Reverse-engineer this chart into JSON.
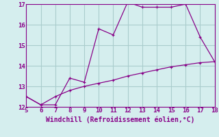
{
  "line1_x": [
    5,
    6,
    7,
    8,
    9,
    10,
    11,
    12,
    13,
    14,
    15,
    16,
    17,
    18
  ],
  "line1_y": [
    12.5,
    12.1,
    12.1,
    13.4,
    13.2,
    15.8,
    15.5,
    17.1,
    16.85,
    16.85,
    16.85,
    17.0,
    15.4,
    14.2
  ],
  "line2_x": [
    5,
    6,
    7,
    8,
    9,
    10,
    11,
    12,
    13,
    14,
    15,
    16,
    17,
    18
  ],
  "line2_y": [
    12.5,
    12.1,
    12.5,
    12.8,
    13.0,
    13.15,
    13.3,
    13.5,
    13.65,
    13.8,
    13.95,
    14.05,
    14.15,
    14.2
  ],
  "line_color": "#880088",
  "bg_color": "#d5eeee",
  "grid_color": "#aacccc",
  "xlabel": "Windchill (Refroidissement éolien,°C)",
  "xlim": [
    5,
    18
  ],
  "ylim": [
    12,
    17
  ],
  "xticks": [
    5,
    6,
    7,
    8,
    9,
    10,
    11,
    12,
    13,
    14,
    15,
    16,
    17,
    18
  ],
  "yticks": [
    12,
    13,
    14,
    15,
    16,
    17
  ],
  "tick_fontsize": 6.5,
  "xlabel_fontsize": 7,
  "marker": "+"
}
